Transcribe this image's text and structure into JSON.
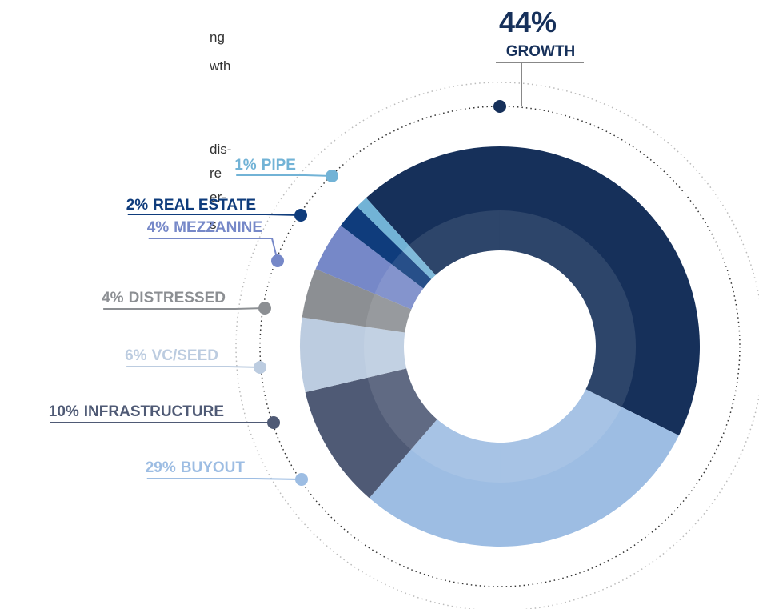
{
  "texts": [
    "ng",
    "wth",
    "dis-",
    "re",
    "er-",
    "s."
  ],
  "chart_data": {
    "type": "pie",
    "categories": [
      "GROWTH",
      "BUYOUT",
      "INFRASTRUCTURE",
      "VC/SEED",
      "DISTRESSED",
      "MEZZANINE",
      "REAL ESTATE",
      "PIPE"
    ],
    "values": [
      44,
      29,
      10,
      6,
      4,
      4,
      2,
      1
    ],
    "value_labels": [
      "44%",
      "29%",
      "10%",
      "6%",
      "4%",
      "4%",
      "2%",
      "1%"
    ],
    "colors": [
      "#16305a",
      "#9dbde3",
      "#4f5a75",
      "#bccce0",
      "#8c8f93",
      "#7688c8",
      "#0f3c7c",
      "#72b3d6"
    ]
  }
}
